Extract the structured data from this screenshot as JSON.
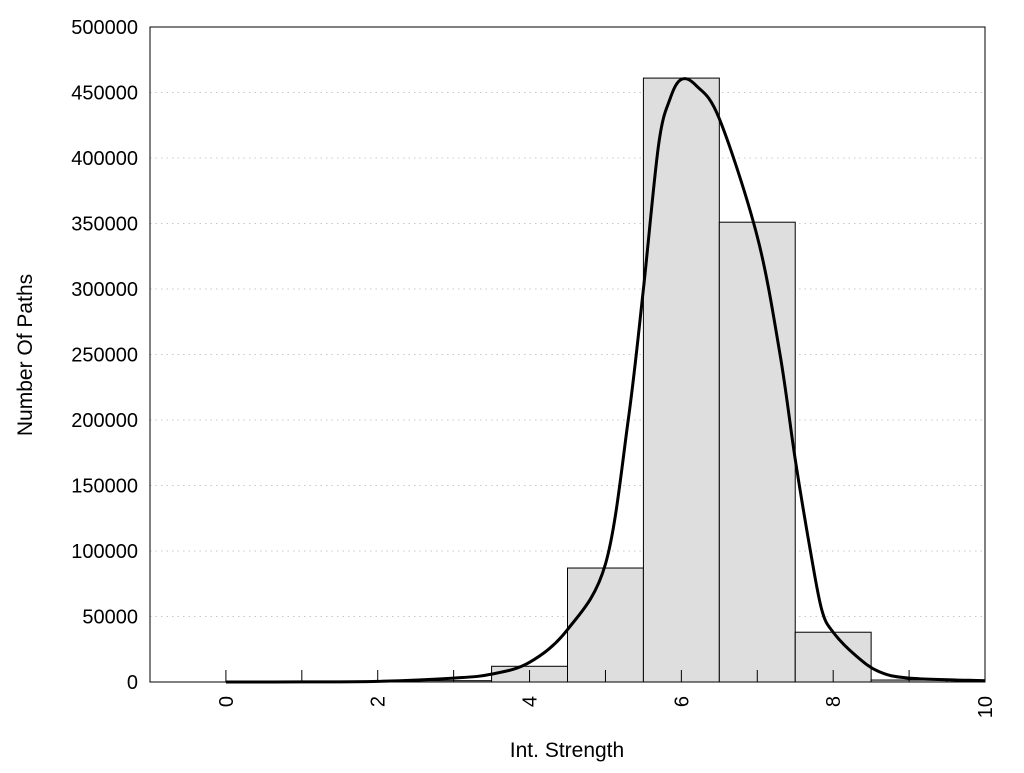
{
  "chart_data": {
    "type": "bar",
    "title": "",
    "xlabel": "Int. Strength",
    "ylabel": "Number Of Paths",
    "xlim": [
      -1,
      10
    ],
    "ylim": [
      0,
      500000
    ],
    "grid": "horizontal dotted",
    "x_ticks": [
      0,
      2,
      4,
      6,
      8,
      10
    ],
    "y_ticks": [
      0,
      50000,
      100000,
      150000,
      200000,
      250000,
      300000,
      350000,
      400000,
      450000,
      500000
    ],
    "bars": {
      "centers": [
        3,
        4,
        5,
        6,
        7,
        8,
        9
      ],
      "values": [
        1000,
        12000,
        87000,
        461000,
        351000,
        38000,
        1500
      ],
      "width": 1,
      "color": "#dedede"
    },
    "curve": {
      "x": [
        0,
        1,
        2,
        3,
        3.5,
        4,
        4.5,
        5,
        5.3,
        5.5,
        5.7,
        5.85,
        6,
        6.2,
        6.5,
        7,
        7.3,
        7.5,
        7.7,
        7.85,
        8,
        8.3,
        8.6,
        9,
        10
      ],
      "y": [
        0,
        100,
        500,
        3000,
        6000,
        15000,
        40000,
        90000,
        200000,
        300000,
        410000,
        445000,
        460000,
        455000,
        430000,
        340000,
        250000,
        170000,
        100000,
        55000,
        38000,
        20000,
        8000,
        3000,
        1000
      ],
      "color": "#000000"
    }
  }
}
